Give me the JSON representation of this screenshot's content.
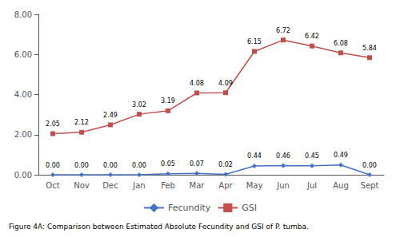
{
  "chart_data": {
    "type": "line",
    "title": "Figure 4A: Comparison between Estimated Absolute Fecundity and GSI of P. tumba.",
    "categories": [
      "Oct",
      "Nov",
      "Dec",
      "Jan",
      "Feb",
      "Mar",
      "Apr",
      "May",
      "Jun",
      "Jul",
      "Aug",
      "Sept"
    ],
    "series": [
      {
        "name": "Fecundity",
        "color": "#4472C4",
        "marker": "diamond",
        "values": [
          0.0,
          0.0,
          0.0,
          0.0,
          0.05,
          0.07,
          0.02,
          0.44,
          0.46,
          0.45,
          0.49,
          0.0
        ],
        "value_labels": [
          "0.00",
          "0.00",
          "0.00",
          "0.00",
          "0.05",
          "0.07",
          "0.02",
          "0.44",
          "0.46",
          "0.45",
          "0.49",
          "0.00"
        ]
      },
      {
        "name": "GSI",
        "color": "#C0504D",
        "marker": "square",
        "values": [
          2.05,
          2.12,
          2.49,
          3.02,
          3.19,
          4.08,
          4.09,
          6.15,
          6.72,
          6.42,
          6.08,
          5.84
        ],
        "value_labels": [
          "2.05",
          "2.12",
          "2.49",
          "3.02",
          "3.19",
          "4.08",
          "4.09",
          "6.15",
          "6.72",
          "6.42",
          "6.08",
          "5.84"
        ]
      }
    ],
    "ylim": [
      0,
      8.0
    ],
    "yticks": [
      {
        "value": 0,
        "label": "0.00"
      },
      {
        "value": 2,
        "label": "2.00"
      },
      {
        "value": 4,
        "label": "4.00"
      },
      {
        "value": 6,
        "label": "6.00"
      },
      {
        "value": 8,
        "label": "8.00"
      }
    ],
    "grid": false,
    "legend": "bottom",
    "data_labels": true
  }
}
